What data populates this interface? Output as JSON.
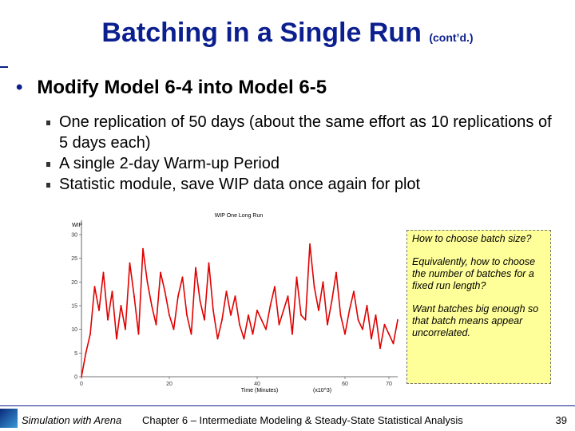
{
  "slide": {
    "title_main": "Batching in a Single Run",
    "title_suffix": "(cont’d.)",
    "bullet": "Modify Model 6-4 into Model 6-5",
    "sub_bullets": [
      "One replication of 50 days (about the same effort as 10 replications of 5 days each)",
      "A single 2-day Warm-up Period",
      "Statistic module, save WIP data once again for plot"
    ],
    "callout": [
      "How to choose batch size?",
      "Equivalently, how to choose the number of batches for a fixed run length?",
      "Want batches big enough so that batch means appear uncorrelated."
    ],
    "footer": {
      "left": "Simulation with Arena",
      "center": "Chapter 6 – Intermediate Modeling & Steady-State Statistical Analysis",
      "page": "39"
    },
    "colors": {
      "title": "#0b1f8f",
      "series": "#e00000",
      "callout_bg": "#ffff99"
    }
  },
  "chart_data": {
    "type": "line",
    "title": "WIP One Long Run",
    "ylabel": "WIP",
    "xlabel": "Time (Minutes)",
    "x_multiplier": "(x10^3)",
    "x_ticks": [
      "0",
      "20",
      "40",
      "60",
      "70"
    ],
    "y_ticks": [
      "0",
      "5",
      "10",
      "15",
      "20",
      "25",
      "30"
    ],
    "ylim": [
      0,
      32
    ],
    "xlim": [
      0,
      72
    ],
    "series": [
      {
        "color": "#e00000",
        "x": [
          0,
          1,
          2,
          3,
          4,
          5,
          6,
          7,
          8,
          9,
          10,
          11,
          12,
          13,
          14,
          15,
          16,
          17,
          18,
          19,
          20,
          21,
          22,
          23,
          24,
          25,
          26,
          27,
          28,
          29,
          30,
          31,
          32,
          33,
          34,
          35,
          36,
          37,
          38,
          39,
          40,
          41,
          42,
          43,
          44,
          45,
          46,
          47,
          48,
          49,
          50,
          51,
          52,
          53,
          54,
          55,
          56,
          57,
          58,
          59,
          60,
          61,
          62,
          63,
          64,
          65,
          66,
          67,
          68,
          69,
          70,
          71,
          72
        ],
        "values": [
          0,
          5,
          9,
          19,
          14,
          22,
          12,
          18,
          8,
          15,
          10,
          24,
          17,
          9,
          27,
          20,
          15,
          11,
          22,
          18,
          13,
          10,
          17,
          21,
          13,
          9,
          23,
          16,
          12,
          24,
          14,
          8,
          12,
          18,
          13,
          17,
          11,
          8,
          13,
          9,
          14,
          12,
          10,
          15,
          19,
          11,
          14,
          17,
          9,
          21,
          13,
          12,
          28,
          19,
          14,
          20,
          11,
          16,
          22,
          13,
          9,
          14,
          18,
          12,
          10,
          15,
          8,
          13,
          6,
          11,
          9,
          7,
          12
        ]
      }
    ]
  }
}
